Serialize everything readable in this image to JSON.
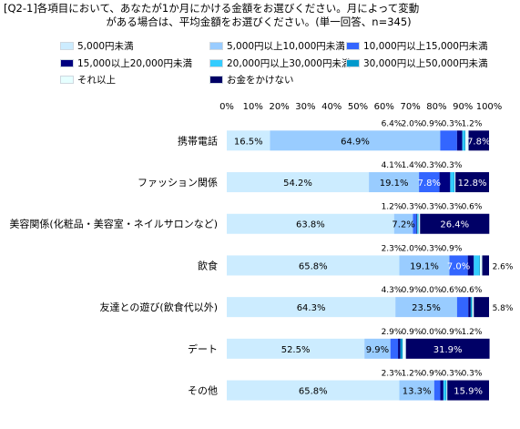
{
  "title_lines": [
    "[Q2-1]各項目において、あなたが1か月にかける金額をお選びください。月によって変動",
    "がある場合は、平均金額をお選びください。(単一回答、n=345)"
  ],
  "chart_data": {
    "type": "bar",
    "orientation": "horizontal",
    "stacked": "percent",
    "title": "[Q2-1]各項目において、あなたが1か月にかける金額をお選びください。月によって変動がある場合は、平均金額をお選びください。(単一回答、n=345)",
    "xlim": [
      0,
      100
    ],
    "x_ticks": [
      "0%",
      "10%",
      "20%",
      "30%",
      "40%",
      "50%",
      "60%",
      "70%",
      "80%",
      "90%",
      "100%"
    ],
    "legend_position": "top",
    "categories": [
      "携帯電話",
      "ファッション関係",
      "美容関係(化粧品・美容室・ネイルサロンなど)",
      "飲食",
      "友達との遊び(飲食代以外)",
      "デート",
      "その他"
    ],
    "series": [
      {
        "name": "5,000円未満",
        "color": "#ccecff",
        "values": [
          16.5,
          54.2,
          63.8,
          65.8,
          64.3,
          52.5,
          65.8
        ]
      },
      {
        "name": "5,000円以上10,000円未満",
        "color": "#99ccff",
        "values": [
          64.9,
          19.1,
          7.2,
          19.1,
          23.5,
          9.9,
          13.3
        ]
      },
      {
        "name": "10,000円以上15,000円未満",
        "color": "#3366ff",
        "values": [
          6.4,
          7.8,
          1.2,
          7.0,
          4.3,
          2.9,
          2.3
        ]
      },
      {
        "name": "15,000以上20,000円未満",
        "color": "#000080",
        "values": [
          2.0,
          4.1,
          0.3,
          2.3,
          0.9,
          0.9,
          1.2
        ]
      },
      {
        "name": "20,000円以上30,000円未満",
        "color": "#33ccff",
        "values": [
          0.9,
          1.4,
          0.3,
          2.0,
          0.0,
          0.0,
          0.9
        ]
      },
      {
        "name": "30,000円以上50,000円未満",
        "color": "#0099cc",
        "values": [
          0.3,
          0.3,
          0.3,
          0.3,
          0.6,
          0.9,
          0.3
        ]
      },
      {
        "name": "それ以上",
        "color": "#e6ffff",
        "values": [
          1.2,
          0.3,
          0.6,
          0.9,
          0.6,
          1.2,
          0.3
        ]
      },
      {
        "name": "お金をかけない",
        "color": "#000066",
        "values": [
          7.8,
          12.8,
          26.4,
          2.6,
          5.8,
          31.9,
          15.9
        ]
      }
    ]
  }
}
